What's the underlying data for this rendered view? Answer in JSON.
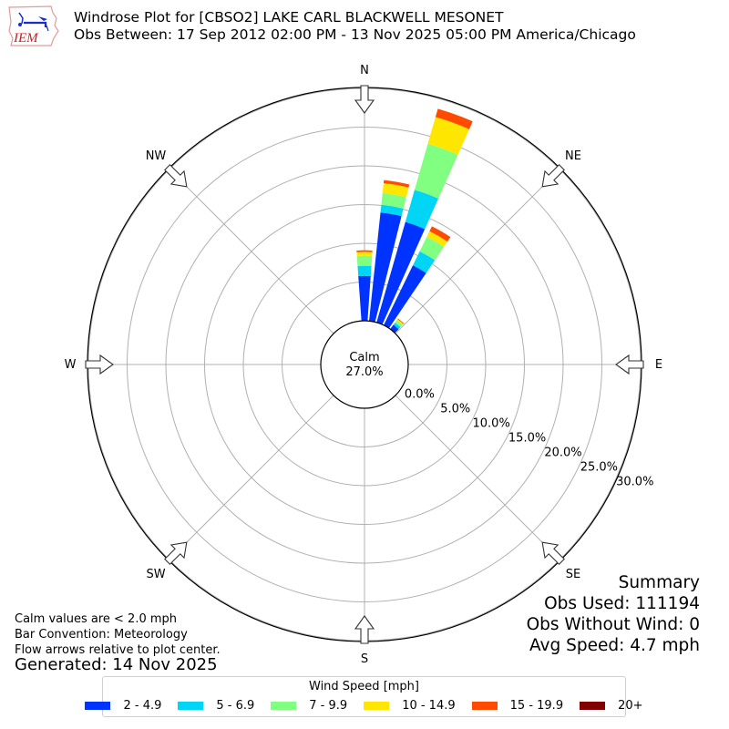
{
  "header": {
    "title_line1": "Windrose Plot for [CBSO2] LAKE CARL BLACKWELL MESONET",
    "title_line2": "Obs Between: 17 Sep 2012 02:00 PM - 13 Nov 2025 05:00 PM America/Chicago",
    "logo_text": "IEM"
  },
  "compass": {
    "N": "N",
    "NE": "NE",
    "E": "E",
    "SE": "SE",
    "S": "S",
    "SW": "SW",
    "W": "W",
    "NW": "NW"
  },
  "calm": {
    "label": "Calm",
    "value": "27.0%"
  },
  "ring_labels": [
    "0.0%",
    "5.0%",
    "10.0%",
    "15.0%",
    "20.0%",
    "25.0%",
    "30.0%"
  ],
  "notes": {
    "line1": "Calm values are < 2.0 mph",
    "line2": "Bar Convention: Meteorology",
    "line3": "Flow arrows relative to plot center.",
    "generated": "Generated: 14 Nov 2025"
  },
  "summary": {
    "title": "Summary",
    "obs_used": "Obs Used: 111194",
    "obs_without_wind": "Obs Without Wind: 0",
    "avg_speed": "Avg Speed: 4.7 mph"
  },
  "legend": {
    "title": "Wind Speed [mph]",
    "items": [
      {
        "label": "2 - 4.9",
        "color": "#0033ff"
      },
      {
        "label": "5 - 6.9",
        "color": "#00d5f5"
      },
      {
        "label": "7 - 9.9",
        "color": "#80ff80"
      },
      {
        "label": "10 - 14.9",
        "color": "#ffe600"
      },
      {
        "label": "15 - 19.9",
        "color": "#ff4a00"
      },
      {
        "label": "20+",
        "color": "#800000"
      }
    ]
  },
  "chart_data": {
    "type": "windrose",
    "title": "Windrose Plot for [CBSO2] LAKE CARL BLACKWELL MESONET",
    "subtitle": "Obs Between: 17 Sep 2012 02:00 PM - 13 Nov 2025 05:00 PM America/Chicago",
    "radial_unit": "% of observations (cumulative)",
    "rlim": [
      0,
      30
    ],
    "radial_ticks": [
      0,
      5,
      10,
      15,
      20,
      25,
      30
    ],
    "calm_percent": 27.0,
    "legend_title": "Wind Speed [mph]",
    "speed_bins": [
      "2 - 4.9",
      "5 - 6.9",
      "7 - 9.9",
      "10 - 14.9",
      "15 - 19.9",
      "20+"
    ],
    "colors": [
      "#0033ff",
      "#00d5f5",
      "#80ff80",
      "#ffe600",
      "#ff4a00",
      "#800000"
    ],
    "direction_bin_width_deg": 10,
    "bars": [
      {
        "direction_deg": 0,
        "cumulative": [
          5.8,
          7.1,
          8.4,
          8.9,
          9.1,
          9.1
        ]
      },
      {
        "direction_deg": 10,
        "cumulative": [
          14.1,
          15.1,
          16.6,
          17.9,
          18.3,
          18.3
        ]
      },
      {
        "direction_deg": 20,
        "cumulative": [
          13.5,
          17.8,
          24.0,
          27.6,
          28.7,
          28.7
        ]
      },
      {
        "direction_deg": 30,
        "cumulative": [
          8.6,
          10.6,
          12.7,
          13.5,
          14.2,
          14.2
        ]
      },
      {
        "direction_deg": 40,
        "cumulative": [
          0.7,
          1.05,
          1.4,
          1.6,
          1.7,
          1.7
        ]
      }
    ]
  }
}
